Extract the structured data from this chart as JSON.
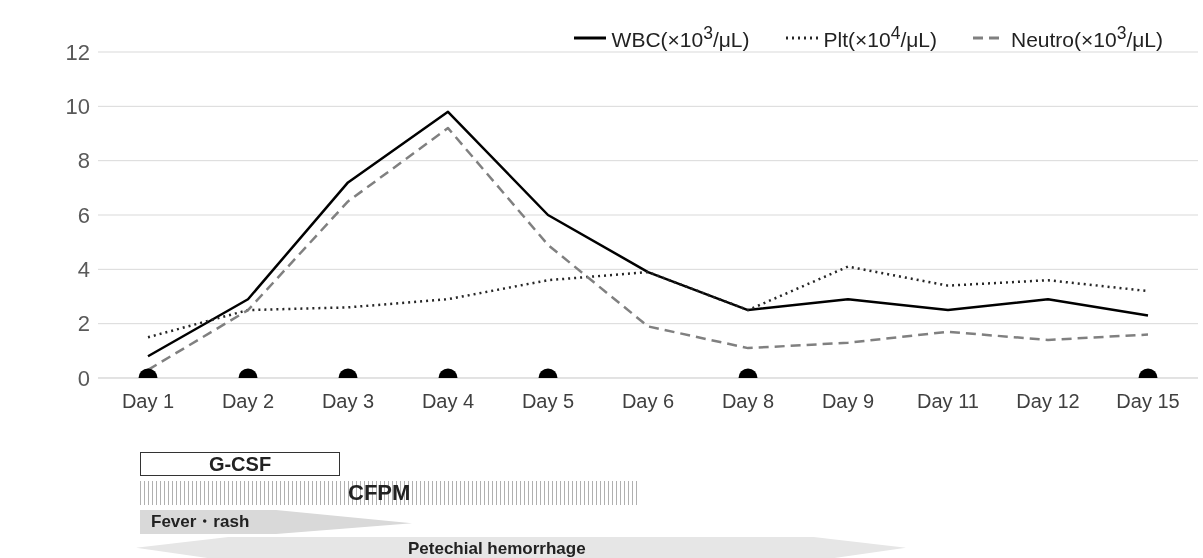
{
  "chart_data": {
    "type": "line",
    "categories": [
      "Day 1",
      "Day 2",
      "Day 3",
      "Day 4",
      "Day 5",
      "Day 6",
      "Day 8",
      "Day 9",
      "Day 11",
      "Day 12",
      "Day 15"
    ],
    "series": [
      {
        "name": "WBC(×10$^{3}$/μL)",
        "color": "#000000",
        "line_style": "solid",
        "marker": "none",
        "values": [
          0.8,
          2.9,
          7.2,
          9.8,
          6.0,
          3.9,
          2.5,
          2.9,
          2.5,
          2.9,
          2.3
        ]
      },
      {
        "name": "Plt(×10$^{4}$/μL)",
        "color": "#262626",
        "line_style": "dotted",
        "marker": "none",
        "values": [
          1.5,
          2.5,
          2.6,
          2.9,
          3.6,
          3.9,
          2.5,
          4.1,
          3.4,
          3.6,
          3.2
        ]
      },
      {
        "name": "Neutro(×10$^{3}$/μL)",
        "color": "#808080",
        "line_style": "dashed",
        "marker": "none",
        "values": [
          0.3,
          2.5,
          6.5,
          9.2,
          4.9,
          1.9,
          1.1,
          1.3,
          1.7,
          1.4,
          1.6
        ]
      },
      {
        "type": "scatter",
        "color": "#000000",
        "marker": "circle",
        "x": [
          "Day 1",
          "Day 2",
          "Day 3",
          "Day 4",
          "Day 5",
          "Day 8",
          "Day 15"
        ],
        "values": [
          0,
          0,
          0,
          0,
          0,
          0,
          0
        ]
      }
    ],
    "ylim": [
      0,
      12
    ],
    "yticks": [
      0,
      2,
      4,
      6,
      8,
      10,
      12
    ],
    "grid": "y",
    "legend": "top right",
    "annotations": [
      "G-CSF",
      "CFPM",
      "Fever・rash",
      "Petechial hemorrhage"
    ]
  }
}
